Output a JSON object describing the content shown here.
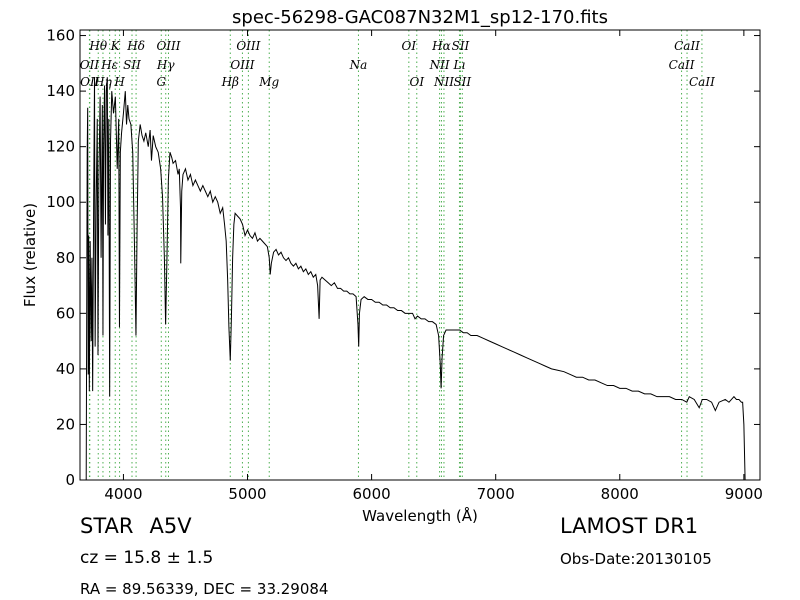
{
  "chart_data": {
    "type": "line",
    "title": "spec-56298-GAC087N32M1_sp12-170.fits",
    "xlabel": "Wavelength (Å)",
    "ylabel": "Flux (relative)",
    "xlim": [
      3650,
      9130
    ],
    "ylim": [
      0,
      162
    ],
    "xticks": [
      4000,
      5000,
      6000,
      7000,
      8000,
      9000
    ],
    "yticks": [
      0,
      20,
      40,
      60,
      80,
      100,
      120,
      140,
      160
    ],
    "grid": false,
    "series": [
      {
        "points": [
          [
            3700,
            0
          ],
          [
            3708,
            118
          ],
          [
            3712,
            134
          ],
          [
            3716,
            38
          ],
          [
            3720,
            88
          ],
          [
            3725,
            32
          ],
          [
            3732,
            86
          ],
          [
            3740,
            50
          ],
          [
            3746,
            80
          ],
          [
            3752,
            32
          ],
          [
            3760,
            100
          ],
          [
            3767,
            145
          ],
          [
            3772,
            48
          ],
          [
            3780,
            98
          ],
          [
            3789,
            130
          ],
          [
            3795,
            45
          ],
          [
            3802,
            108
          ],
          [
            3812,
            138
          ],
          [
            3820,
            80
          ],
          [
            3830,
            135
          ],
          [
            3835,
            52
          ],
          [
            3840,
            120
          ],
          [
            3848,
            142
          ],
          [
            3855,
            92
          ],
          [
            3862,
            140
          ],
          [
            3870,
            145
          ],
          [
            3875,
            88
          ],
          [
            3882,
            130
          ],
          [
            3889,
            30
          ],
          [
            3896,
            122
          ],
          [
            3906,
            140
          ],
          [
            3920,
            132
          ],
          [
            3935,
            138
          ],
          [
            3950,
            112
          ],
          [
            3962,
            130
          ],
          [
            3968,
            55
          ],
          [
            3975,
            118
          ],
          [
            3985,
            125
          ],
          [
            4000,
            132
          ],
          [
            4015,
            140
          ],
          [
            4025,
            128
          ],
          [
            4035,
            135
          ],
          [
            4045,
            130
          ],
          [
            4060,
            128
          ],
          [
            4075,
            118
          ],
          [
            4090,
            82
          ],
          [
            4101,
            52
          ],
          [
            4110,
            90
          ],
          [
            4120,
            122
          ],
          [
            4135,
            128
          ],
          [
            4150,
            124
          ],
          [
            4165,
            122
          ],
          [
            4180,
            125
          ],
          [
            4200,
            120
          ],
          [
            4215,
            126
          ],
          [
            4226,
            115
          ],
          [
            4240,
            124
          ],
          [
            4260,
            120
          ],
          [
            4280,
            118
          ],
          [
            4300,
            112
          ],
          [
            4315,
            102
          ],
          [
            4330,
            80
          ],
          [
            4340,
            56
          ],
          [
            4350,
            78
          ],
          [
            4362,
            108
          ],
          [
            4375,
            118
          ],
          [
            4390,
            116
          ],
          [
            4400,
            114
          ],
          [
            4420,
            115
          ],
          [
            4440,
            110
          ],
          [
            4450,
            112
          ],
          [
            4460,
            98
          ],
          [
            4462,
            78
          ],
          [
            4470,
            104
          ],
          [
            4480,
            110
          ],
          [
            4500,
            112
          ],
          [
            4520,
            108
          ],
          [
            4540,
            110
          ],
          [
            4560,
            106
          ],
          [
            4580,
            108
          ],
          [
            4600,
            106
          ],
          [
            4620,
            104
          ],
          [
            4640,
            106
          ],
          [
            4660,
            104
          ],
          [
            4680,
            102
          ],
          [
            4700,
            104
          ],
          [
            4720,
            100
          ],
          [
            4740,
            102
          ],
          [
            4760,
            100
          ],
          [
            4780,
            96
          ],
          [
            4800,
            98
          ],
          [
            4815,
            92
          ],
          [
            4828,
            86
          ],
          [
            4840,
            72
          ],
          [
            4850,
            55
          ],
          [
            4861,
            43
          ],
          [
            4870,
            58
          ],
          [
            4880,
            80
          ],
          [
            4890,
            92
          ],
          [
            4900,
            96
          ],
          [
            4920,
            95
          ],
          [
            4940,
            94
          ],
          [
            4960,
            92
          ],
          [
            4980,
            88
          ],
          [
            5000,
            90
          ],
          [
            5020,
            88
          ],
          [
            5040,
            87
          ],
          [
            5060,
            89
          ],
          [
            5080,
            86
          ],
          [
            5100,
            87
          ],
          [
            5120,
            86
          ],
          [
            5140,
            85
          ],
          [
            5160,
            84
          ],
          [
            5175,
            80
          ],
          [
            5183,
            74
          ],
          [
            5192,
            78
          ],
          [
            5210,
            82
          ],
          [
            5230,
            83
          ],
          [
            5250,
            81
          ],
          [
            5270,
            82
          ],
          [
            5290,
            80
          ],
          [
            5310,
            79
          ],
          [
            5330,
            80
          ],
          [
            5350,
            78
          ],
          [
            5370,
            77
          ],
          [
            5390,
            78
          ],
          [
            5410,
            76
          ],
          [
            5430,
            77
          ],
          [
            5450,
            75
          ],
          [
            5470,
            76
          ],
          [
            5490,
            74
          ],
          [
            5510,
            75
          ],
          [
            5530,
            73
          ],
          [
            5550,
            74
          ],
          [
            5565,
            70
          ],
          [
            5577,
            58
          ],
          [
            5585,
            72
          ],
          [
            5600,
            73
          ],
          [
            5625,
            72
          ],
          [
            5650,
            71
          ],
          [
            5675,
            70
          ],
          [
            5700,
            71
          ],
          [
            5725,
            69
          ],
          [
            5750,
            69
          ],
          [
            5775,
            68
          ],
          [
            5800,
            68
          ],
          [
            5825,
            67
          ],
          [
            5850,
            67
          ],
          [
            5875,
            66
          ],
          [
            5890,
            56
          ],
          [
            5896,
            48
          ],
          [
            5902,
            60
          ],
          [
            5915,
            65
          ],
          [
            5940,
            66
          ],
          [
            5970,
            65
          ],
          [
            6000,
            65
          ],
          [
            6030,
            64
          ],
          [
            6060,
            64
          ],
          [
            6090,
            63
          ],
          [
            6120,
            63
          ],
          [
            6150,
            62
          ],
          [
            6180,
            62
          ],
          [
            6210,
            61
          ],
          [
            6240,
            61
          ],
          [
            6270,
            60
          ],
          [
            6300,
            60
          ],
          [
            6330,
            60
          ],
          [
            6350,
            58
          ],
          [
            6370,
            59
          ],
          [
            6400,
            58
          ],
          [
            6430,
            58
          ],
          [
            6460,
            57
          ],
          [
            6490,
            57
          ],
          [
            6520,
            56
          ],
          [
            6540,
            52
          ],
          [
            6553,
            42
          ],
          [
            6560,
            33
          ],
          [
            6568,
            44
          ],
          [
            6580,
            52
          ],
          [
            6600,
            54
          ],
          [
            6620,
            54
          ],
          [
            6650,
            54
          ],
          [
            6680,
            54
          ],
          [
            6710,
            54
          ],
          [
            6740,
            53
          ],
          [
            6770,
            53
          ],
          [
            6800,
            52
          ],
          [
            6850,
            52
          ],
          [
            6900,
            51
          ],
          [
            6950,
            50
          ],
          [
            7000,
            49
          ],
          [
            7050,
            48
          ],
          [
            7100,
            47
          ],
          [
            7150,
            46
          ],
          [
            7200,
            45
          ],
          [
            7250,
            44
          ],
          [
            7300,
            43
          ],
          [
            7350,
            42
          ],
          [
            7400,
            41
          ],
          [
            7450,
            40
          ],
          [
            7500,
            39.5
          ],
          [
            7550,
            39
          ],
          [
            7600,
            38
          ],
          [
            7650,
            37
          ],
          [
            7700,
            37
          ],
          [
            7750,
            36
          ],
          [
            7800,
            36
          ],
          [
            7850,
            35
          ],
          [
            7900,
            34
          ],
          [
            7950,
            34
          ],
          [
            8000,
            33
          ],
          [
            8050,
            33
          ],
          [
            8100,
            32
          ],
          [
            8150,
            32
          ],
          [
            8200,
            31
          ],
          [
            8250,
            31
          ],
          [
            8300,
            30
          ],
          [
            8350,
            30
          ],
          [
            8400,
            30
          ],
          [
            8450,
            29
          ],
          [
            8500,
            29
          ],
          [
            8540,
            28
          ],
          [
            8560,
            30
          ],
          [
            8600,
            29
          ],
          [
            8640,
            26
          ],
          [
            8665,
            29
          ],
          [
            8700,
            29
          ],
          [
            8740,
            28
          ],
          [
            8770,
            25
          ],
          [
            8800,
            28
          ],
          [
            8850,
            29
          ],
          [
            8880,
            28
          ],
          [
            8900,
            29
          ],
          [
            8920,
            30
          ],
          [
            8940,
            29
          ],
          [
            8960,
            29
          ],
          [
            8980,
            28
          ],
          [
            8990,
            28
          ],
          [
            9000,
            20
          ],
          [
            9010,
            0
          ]
        ]
      }
    ],
    "lines": [
      {
        "name": "Hθ",
        "x": 3797,
        "row": 0
      },
      {
        "name": "OII",
        "x": 3726,
        "row": 1
      },
      {
        "name": "OII",
        "x": 3729,
        "row": 2
      },
      {
        "name": "Hη",
        "x": 3835,
        "row": 2
      },
      {
        "name": "K",
        "x": 3934,
        "row": 0
      },
      {
        "name": "Hε",
        "x": 3889,
        "row": 1
      },
      {
        "name": "H",
        "x": 3969,
        "row": 2
      },
      {
        "name": "SII",
        "x": 4069,
        "row": 1
      },
      {
        "name": "Hδ",
        "x": 4102,
        "row": 0
      },
      {
        "name": "Hγ",
        "x": 4341,
        "row": 1
      },
      {
        "name": "G",
        "x": 4305,
        "row": 2
      },
      {
        "name": "OIII",
        "x": 4363,
        "row": 0
      },
      {
        "name": "Hβ",
        "x": 4861,
        "row": 2
      },
      {
        "name": "OIII",
        "x": 4959,
        "row": 1
      },
      {
        "name": "OIII",
        "x": 5007,
        "row": 0
      },
      {
        "name": "Mg",
        "x": 5175,
        "row": 2
      },
      {
        "name": "Na",
        "x": 5894,
        "row": 1
      },
      {
        "name": "OI",
        "x": 6300,
        "row": 0
      },
      {
        "name": "OI",
        "x": 6364,
        "row": 2
      },
      {
        "name": "NII",
        "x": 6548,
        "row": 1
      },
      {
        "name": "Hα",
        "x": 6563,
        "row": 0
      },
      {
        "name": "NII",
        "x": 6583,
        "row": 2
      },
      {
        "name": "Lı",
        "x": 6708,
        "row": 1
      },
      {
        "name": "SII",
        "x": 6716,
        "row": 0
      },
      {
        "name": "SII",
        "x": 6731,
        "row": 2
      },
      {
        "name": "CaII",
        "x": 8498,
        "row": 1
      },
      {
        "name": "CaII",
        "x": 8542,
        "row": 0
      },
      {
        "name": "CaII",
        "x": 8662,
        "row": 2
      }
    ],
    "colors": {
      "spectrum": "#000000",
      "lines": "#4caf50"
    }
  },
  "info": {
    "class": "STAR",
    "subclass": "A5V",
    "survey": "LAMOST DR1",
    "cz": "cz = 15.8 ± 1.5",
    "obs_date": "Obs-Date:20130105",
    "coords": "RA = 89.56339, DEC = 33.29084"
  }
}
